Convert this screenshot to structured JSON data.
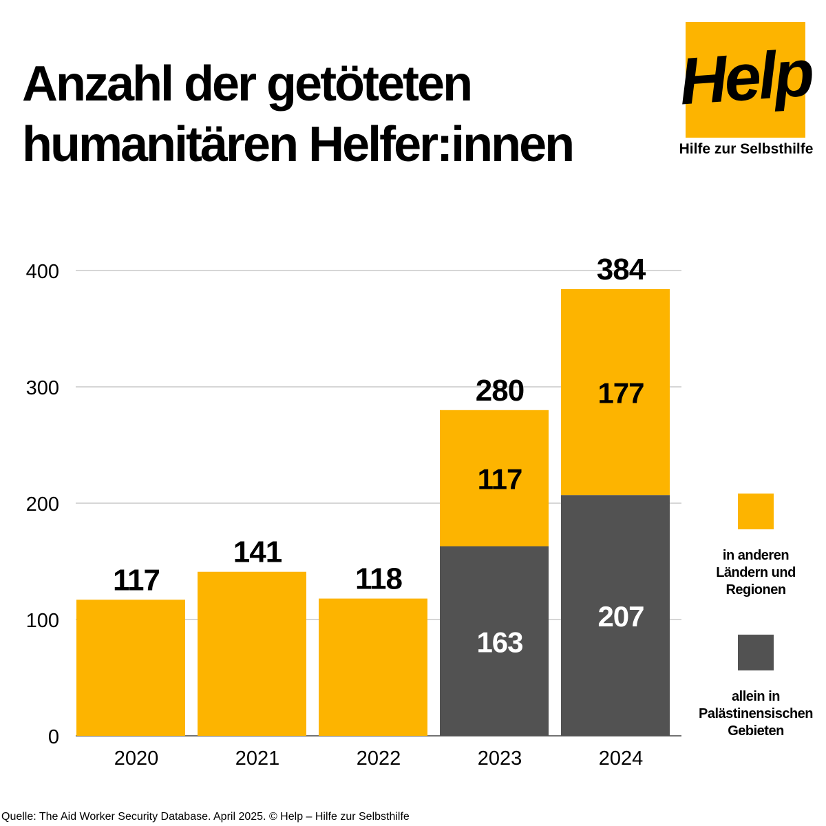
{
  "title": {
    "line1": "Anzahl der getöteten",
    "line2": "humanitären Helfer:innen"
  },
  "logo": {
    "wordmark": "Help",
    "tagline": "Hilfe zur Selbsthilfe"
  },
  "colors": {
    "accent": "#fdb400",
    "dark": "#525252",
    "grid": "#c8c8c8",
    "text": "#000000"
  },
  "chart_data": {
    "type": "bar",
    "stacked": true,
    "categories": [
      "2020",
      "2021",
      "2022",
      "2023",
      "2024"
    ],
    "series": [
      {
        "name": "allein in Palästinensischen Gebieten",
        "color": "#525252",
        "values": [
          null,
          null,
          null,
          163,
          207
        ]
      },
      {
        "name": "in anderen Ländern und Regionen",
        "color": "#fdb400",
        "values": [
          117,
          141,
          118,
          117,
          177
        ]
      }
    ],
    "totals": [
      117,
      141,
      118,
      280,
      384
    ],
    "yticks": [
      0,
      100,
      200,
      300,
      400
    ],
    "ylim": [
      0,
      400
    ],
    "grid": true,
    "legend_position": "right",
    "xlabel": "",
    "ylabel": ""
  },
  "legend": [
    {
      "label_lines": [
        "in anderen",
        "Ländern und",
        "Regionen"
      ],
      "color": "#fdb400"
    },
    {
      "label_lines": [
        "allein in",
        "Palästinensischen",
        "Gebieten"
      ],
      "color": "#525252"
    }
  ],
  "source": "Quelle: The Aid Worker Security Database. April 2025.  © Help – Hilfe zur Selbsthilfe"
}
